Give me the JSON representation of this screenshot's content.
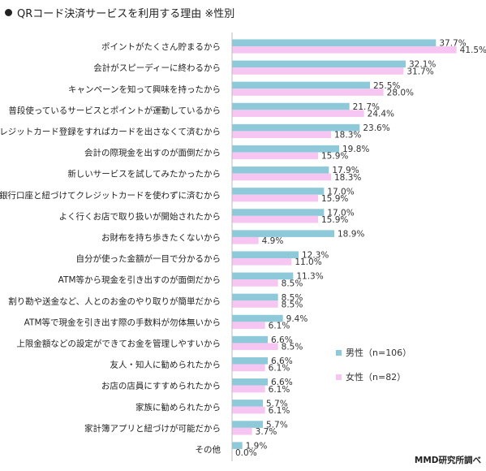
{
  "title": "QRコード決済サービスを利用する理由 ※性別",
  "source": "MMD研究所調べ",
  "colors": {
    "male": "#8ec9d9",
    "female": "#f7c5f1"
  },
  "chart_data": {
    "type": "bar",
    "orientation": "horizontal",
    "title": "QRコード決済サービスを利用する理由 ※性別",
    "legend_position": "right",
    "grid": false,
    "xlim": [
      0,
      45
    ],
    "categories": [
      "ポイントがたくさん貯まるから",
      "会計がスピーディーに終わるから",
      "キャンペーンを知って興味を持ったから",
      "普段使っているサービスとポイントが運動しているから",
      "クレジットカード登録をすればカードを出さなくて済むから",
      "会計の際現金を出すのが面倒だから",
      "新しいサービスを試してみたかったから",
      "銀行口座と紐づけてクレジットカードを使わずに済むから",
      "よく行くお店で取り扱いが開始されたから",
      "お財布を持ち歩きたくないから",
      "自分が使った金額が一目で分かるから",
      "ATM等から現金を引き出すのが面倒だから",
      "割り勘や送金など、人とのお金のやり取りが簡単だから",
      "ATM等で現金を引き出す際の手数料が勿体無いから",
      "上限金額などの設定ができてお金を管理しやすいから",
      "友人・知人に勧められたから",
      "お店の店員にすすめられたから",
      "家族に勧められたから",
      "家計簿アプリと紐づけが可能だから",
      "その他"
    ],
    "series": [
      {
        "name": "男性（n=106）",
        "values": [
          37.7,
          32.1,
          25.5,
          21.7,
          23.6,
          19.8,
          17.9,
          17.0,
          17.0,
          18.9,
          12.3,
          11.3,
          8.5,
          9.4,
          6.6,
          6.6,
          6.6,
          5.7,
          5.7,
          1.9
        ]
      },
      {
        "name": "女性（n=82）",
        "values": [
          41.5,
          31.7,
          28.0,
          24.4,
          18.3,
          15.9,
          18.3,
          15.9,
          15.9,
          4.9,
          11.0,
          8.5,
          8.5,
          6.1,
          8.5,
          6.1,
          6.1,
          6.1,
          3.7,
          0.0
        ]
      }
    ],
    "value_labels": [
      [
        "37.7%",
        "32.1%",
        "25.5%",
        "21.7%",
        "23.6%",
        "19.8%",
        "17.9%",
        "17.0%",
        "17.0%",
        "18.9%",
        "12.3%",
        "11.3%",
        "8.5%",
        "9.4%",
        "6.6%",
        "6.6%",
        "6.6%",
        "5.7%",
        "5.7%",
        "1.9%"
      ],
      [
        "41.5%",
        "31.7%",
        "28.0%",
        "24.4%",
        "18.3%",
        "15.9%",
        "18.3%",
        "15.9%",
        "15.9%",
        "4.9%",
        "11.0%",
        "8.5%",
        "8.5%",
        "6.1%",
        "8.5%",
        "6.1%",
        "6.1%",
        "6.1%",
        "3.7%",
        "0.0%"
      ]
    ]
  }
}
